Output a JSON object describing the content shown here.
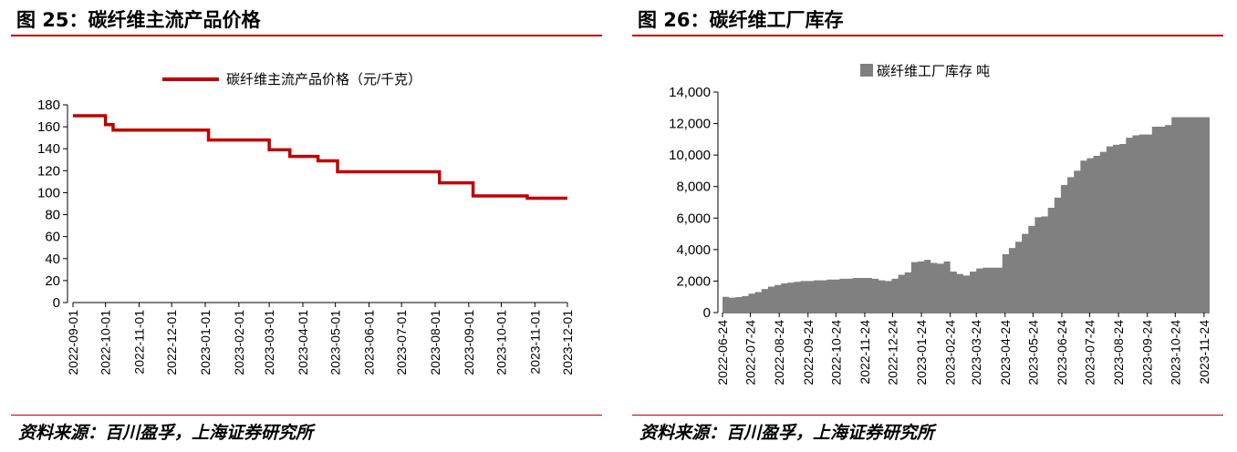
{
  "left": {
    "title": "图 25：碳纤维主流产品价格",
    "source": "资料来源：百川盈孚，上海证券研究所"
  },
  "right": {
    "title": "图 26：碳纤维工厂库存",
    "source": "资料来源：百川盈孚，上海证券研究所"
  },
  "chart_data": [
    {
      "type": "line",
      "legend_position": "top-center",
      "series": [
        {
          "name": "碳纤维主流产品价格（元/千克）",
          "color": "#c00000",
          "step": true,
          "x": [
            "2022-09-01",
            "2022-10-01",
            "2022-10-08",
            "2022-11-01",
            "2022-12-01",
            "2023-01-01",
            "2023-01-04",
            "2023-02-01",
            "2023-02-28",
            "2023-03-01",
            "2023-03-20",
            "2023-04-01",
            "2023-04-15",
            "2023-05-01",
            "2023-05-03",
            "2023-06-01",
            "2023-07-01",
            "2023-08-01",
            "2023-08-05",
            "2023-09-01",
            "2023-09-05",
            "2023-10-01",
            "2023-10-25",
            "2023-11-01",
            "2023-12-01"
          ],
          "values": [
            170,
            162,
            157,
            157,
            157,
            157,
            148,
            148,
            148,
            139,
            133,
            133,
            129,
            129,
            119,
            119,
            119,
            119,
            109,
            109,
            97,
            97,
            95,
            95,
            95
          ]
        }
      ],
      "x_ticks": [
        "2022-09-01",
        "2022-10-01",
        "2022-11-01",
        "2022-12-01",
        "2023-01-01",
        "2023-02-01",
        "2023-03-01",
        "2023-04-01",
        "2023-05-01",
        "2023-06-01",
        "2023-07-01",
        "2023-08-01",
        "2023-09-01",
        "2023-10-01",
        "2023-11-01",
        "2023-12-01"
      ],
      "ylim": [
        0,
        180
      ],
      "y_ticks": [
        "0",
        "20",
        "40",
        "60",
        "80",
        "100",
        "120",
        "140",
        "160",
        "180"
      ],
      "grid": false
    },
    {
      "type": "area",
      "legend_position": "top-center",
      "series": [
        {
          "name": "碳纤维工厂库存 吨",
          "color": "#808080",
          "step": true,
          "x": [
            "2022-06-24",
            "2022-07-01",
            "2022-07-08",
            "2022-07-15",
            "2022-07-22",
            "2022-07-29",
            "2022-08-05",
            "2022-08-12",
            "2022-08-19",
            "2022-08-26",
            "2022-09-02",
            "2022-09-09",
            "2022-09-16",
            "2022-09-23",
            "2022-09-30",
            "2022-10-07",
            "2022-10-14",
            "2022-10-21",
            "2022-10-28",
            "2022-11-04",
            "2022-11-11",
            "2022-11-18",
            "2022-11-25",
            "2022-12-02",
            "2022-12-09",
            "2022-12-16",
            "2022-12-23",
            "2022-12-30",
            "2023-01-06",
            "2023-01-13",
            "2023-01-20",
            "2023-01-27",
            "2023-02-03",
            "2023-02-10",
            "2023-02-17",
            "2023-02-24",
            "2023-03-03",
            "2023-03-10",
            "2023-03-17",
            "2023-03-24",
            "2023-03-31",
            "2023-04-07",
            "2023-04-14",
            "2023-04-21",
            "2023-04-28",
            "2023-05-05",
            "2023-05-12",
            "2023-05-19",
            "2023-05-26",
            "2023-06-02",
            "2023-06-09",
            "2023-06-16",
            "2023-06-23",
            "2023-06-30",
            "2023-07-07",
            "2023-07-14",
            "2023-07-21",
            "2023-07-28",
            "2023-08-04",
            "2023-08-11",
            "2023-08-18",
            "2023-08-25",
            "2023-09-01",
            "2023-09-08",
            "2023-09-15",
            "2023-09-22",
            "2023-09-29",
            "2023-10-06",
            "2023-10-13",
            "2023-10-20",
            "2023-10-27",
            "2023-11-03",
            "2023-11-10",
            "2023-11-17",
            "2023-11-24",
            "2023-11-30"
          ],
          "values": [
            1000,
            950,
            980,
            1050,
            1200,
            1300,
            1500,
            1650,
            1750,
            1850,
            1900,
            1950,
            2000,
            2000,
            2050,
            2050,
            2100,
            2100,
            2150,
            2150,
            2200,
            2200,
            2200,
            2150,
            2050,
            2000,
            2150,
            2400,
            2550,
            3200,
            3250,
            3350,
            3150,
            3100,
            3250,
            2600,
            2450,
            2350,
            2600,
            2800,
            2850,
            2850,
            2850,
            3700,
            4100,
            4500,
            5000,
            5500,
            6050,
            6100,
            6650,
            7300,
            8100,
            8600,
            9000,
            9650,
            9800,
            9950,
            10200,
            10550,
            10650,
            10700,
            11100,
            11250,
            11300,
            11300,
            11800,
            11800,
            11900,
            12400,
            12400,
            12400,
            12400,
            12400,
            12400,
            12400
          ]
        }
      ],
      "x_ticks": [
        "2022-06-24",
        "2022-07-24",
        "2022-08-24",
        "2022-09-24",
        "2022-10-24",
        "2022-11-24",
        "2022-12-24",
        "2023-01-24",
        "2023-02-24",
        "2023-03-24",
        "2023-04-24",
        "2023-05-24",
        "2023-06-24",
        "2023-07-24",
        "2023-08-24",
        "2023-09-24",
        "2023-10-24",
        "2023-11-24"
      ],
      "ylim": [
        0,
        14000
      ],
      "y_ticks": [
        "0",
        "2,000",
        "4,000",
        "6,000",
        "8,000",
        "10,000",
        "12,000",
        "14,000"
      ],
      "grid": false
    }
  ]
}
